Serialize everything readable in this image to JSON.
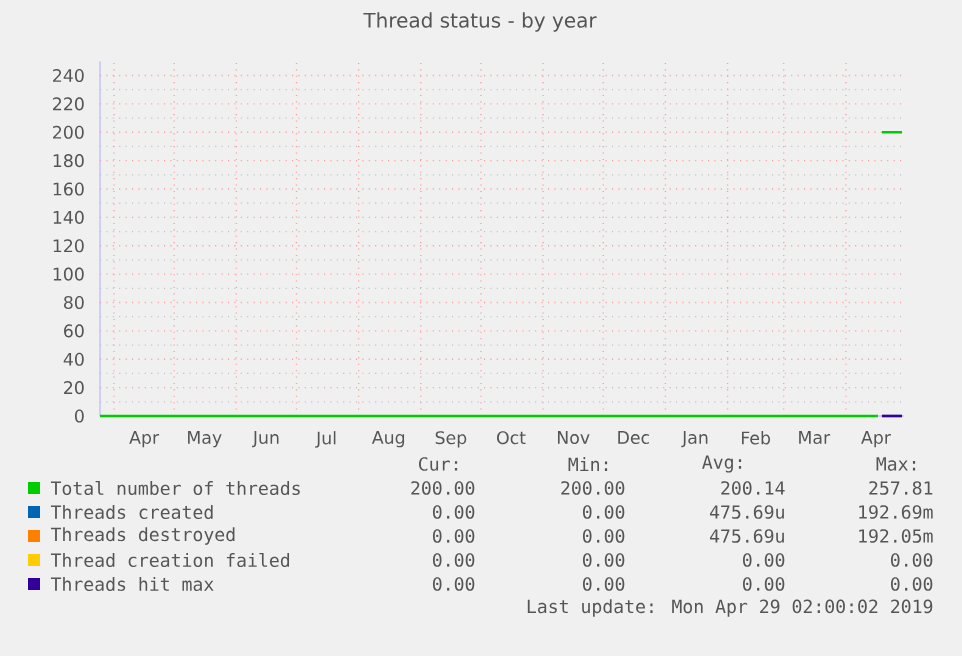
{
  "chart_data": {
    "type": "line",
    "title": "Thread status - by year",
    "xlim": [
      "2018-03-25",
      "2019-04-30"
    ],
    "ylim": [
      0,
      250
    ],
    "xticks": [
      {
        "value": "2018-04-01",
        "label": null
      },
      {
        "value": "2018-04-16",
        "label": "Apr"
      },
      {
        "value": "2018-05-01",
        "label": null
      },
      {
        "value": "2018-05-16",
        "label": "May"
      },
      {
        "value": "2018-06-01",
        "label": null
      },
      {
        "value": "2018-06-16",
        "label": "Jun"
      },
      {
        "value": "2018-07-01",
        "label": null
      },
      {
        "value": "2018-07-16",
        "label": "Jul"
      },
      {
        "value": "2018-08-01",
        "label": null
      },
      {
        "value": "2018-08-16",
        "label": "Aug"
      },
      {
        "value": "2018-09-01",
        "label": null
      },
      {
        "value": "2018-09-16",
        "label": "Sep"
      },
      {
        "value": "2018-10-01",
        "label": null
      },
      {
        "value": "2018-10-16",
        "label": "Oct"
      },
      {
        "value": "2018-11-01",
        "label": null
      },
      {
        "value": "2018-11-16",
        "label": "Nov"
      },
      {
        "value": "2018-12-01",
        "label": null
      },
      {
        "value": "2018-12-16",
        "label": "Dec"
      },
      {
        "value": "2019-01-01",
        "label": null
      },
      {
        "value": "2019-01-16",
        "label": "Jan"
      },
      {
        "value": "2019-02-01",
        "label": null
      },
      {
        "value": "2019-02-15",
        "label": "Feb"
      },
      {
        "value": "2019-03-01",
        "label": null
      },
      {
        "value": "2019-03-16",
        "label": "Mar"
      },
      {
        "value": "2019-04-01",
        "label": null
      },
      {
        "value": "2019-04-16",
        "label": "Apr"
      }
    ],
    "yticks": [
      0,
      20,
      40,
      60,
      80,
      100,
      120,
      140,
      160,
      180,
      200,
      220,
      240
    ],
    "grid": true,
    "legend": "bottom",
    "series": [
      {
        "name": "Total number of threads",
        "color": "#00cc00",
        "x": [
          "2018-03-25",
          "2019-04-17",
          "2019-04-18",
          "2019-04-19",
          "2019-04-29"
        ],
        "values": [
          0,
          0,
          null,
          200,
          200
        ]
      },
      {
        "name": "Threads created",
        "color": "#0066b3"
      },
      {
        "name": "Threads destroyed",
        "color": "#ff8000"
      },
      {
        "name": "Thread creation failed",
        "color": "#ffcc00"
      },
      {
        "name": "Threads hit max",
        "color": "#330099",
        "x": [
          "2019-04-19",
          "2019-04-29"
        ],
        "values": [
          0,
          0
        ]
      }
    ],
    "annotations": [
      "Cur:",
      "Min:",
      "Avg:",
      "Max:",
      "200.00",
      "200.00",
      "200.14",
      "257.81",
      "0.00",
      "0.00",
      "475.69u",
      "192.69m",
      "0.00",
      "0.00",
      "475.69u",
      "192.05m",
      "0.00",
      "0.00",
      "0.00",
      "0.00",
      "0.00",
      "0.00",
      "0.00",
      "0.00",
      "Last update: Mon Apr 29 02:00:02 2019"
    ]
  }
}
